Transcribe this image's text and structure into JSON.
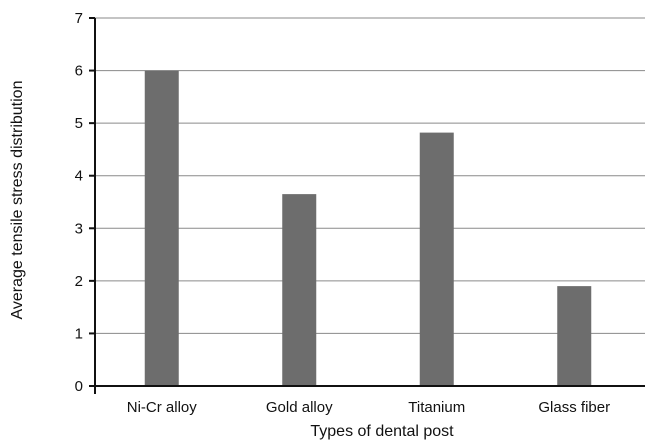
{
  "chart_data": {
    "type": "bar",
    "categories": [
      "Ni-Cr alloy",
      "Gold alloy",
      "Titanium",
      "Glass fiber"
    ],
    "values": [
      6.0,
      3.65,
      4.82,
      1.9
    ],
    "title": "",
    "xlabel": "Types of dental post",
    "ylabel": "Average tensile stress distribution",
    "ylim": [
      0,
      7
    ],
    "yticks": [
      "0",
      "1",
      "2",
      "3",
      "4",
      "5",
      "6",
      "7"
    ],
    "grid": true,
    "legend": "none",
    "colors": {
      "bar": "#6d6d6d",
      "grid": "#8a8a8a",
      "axis": "#111111",
      "text": "#111111"
    }
  }
}
